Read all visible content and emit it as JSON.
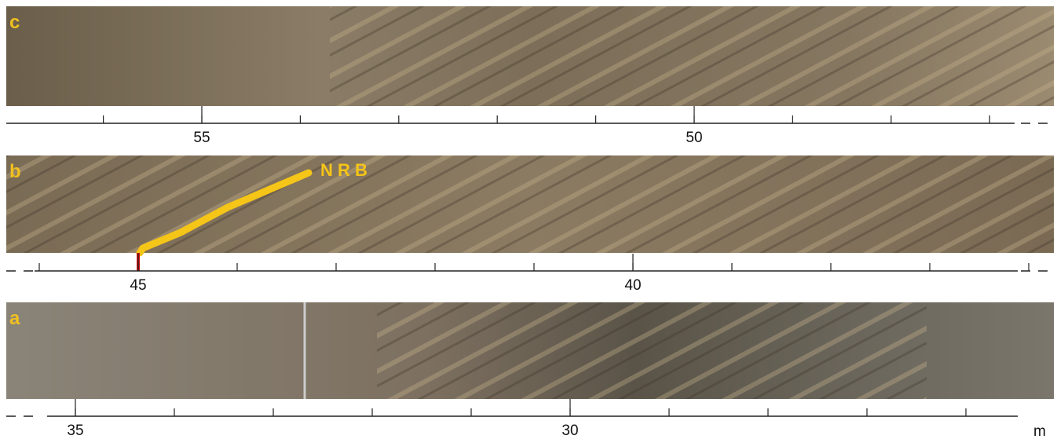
{
  "panels": [
    {
      "label": "c",
      "scale_labels": [
        55,
        50
      ]
    },
    {
      "label": "b",
      "scale_labels": [
        45,
        40
      ],
      "annotation": "N R B"
    },
    {
      "label": "a",
      "scale_labels": [
        35,
        30
      ]
    }
  ],
  "unit": "m"
}
